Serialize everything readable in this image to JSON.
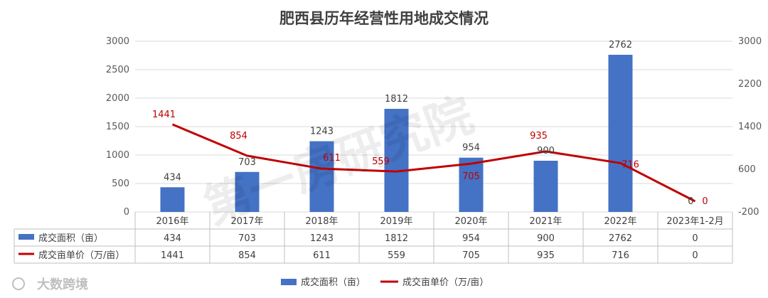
{
  "chart_data": {
    "type": "bar",
    "title": "肥西县历年经营性用地成交情况",
    "categories": [
      "2016年",
      "2017年",
      "2018年",
      "2019年",
      "2020年",
      "2021年",
      "2022年",
      "2023年1-2月"
    ],
    "series": [
      {
        "name": "成交面积（亩）",
        "type": "bar",
        "axis": "left",
        "color": "#4472c4",
        "values": [
          434,
          703,
          1243,
          1812,
          954,
          900,
          2762,
          0
        ]
      },
      {
        "name": "成交亩单价（万/亩）",
        "type": "line",
        "axis": "right",
        "color": "#c00000",
        "values": [
          1441,
          854,
          611,
          559,
          705,
          935,
          716,
          0
        ]
      }
    ],
    "ylim_left": [
      0,
      3000
    ],
    "yticks_left": [
      0,
      500,
      1000,
      1500,
      2000,
      2500,
      3000
    ],
    "ylim_right": [
      -200,
      3000
    ],
    "yticks_right": [
      -200,
      600,
      1400,
      2200,
      3000
    ],
    "grid": true,
    "legend": "bottom",
    "data_table": true
  },
  "watermark": "第一房研究院",
  "logo_text": "大数跨境"
}
